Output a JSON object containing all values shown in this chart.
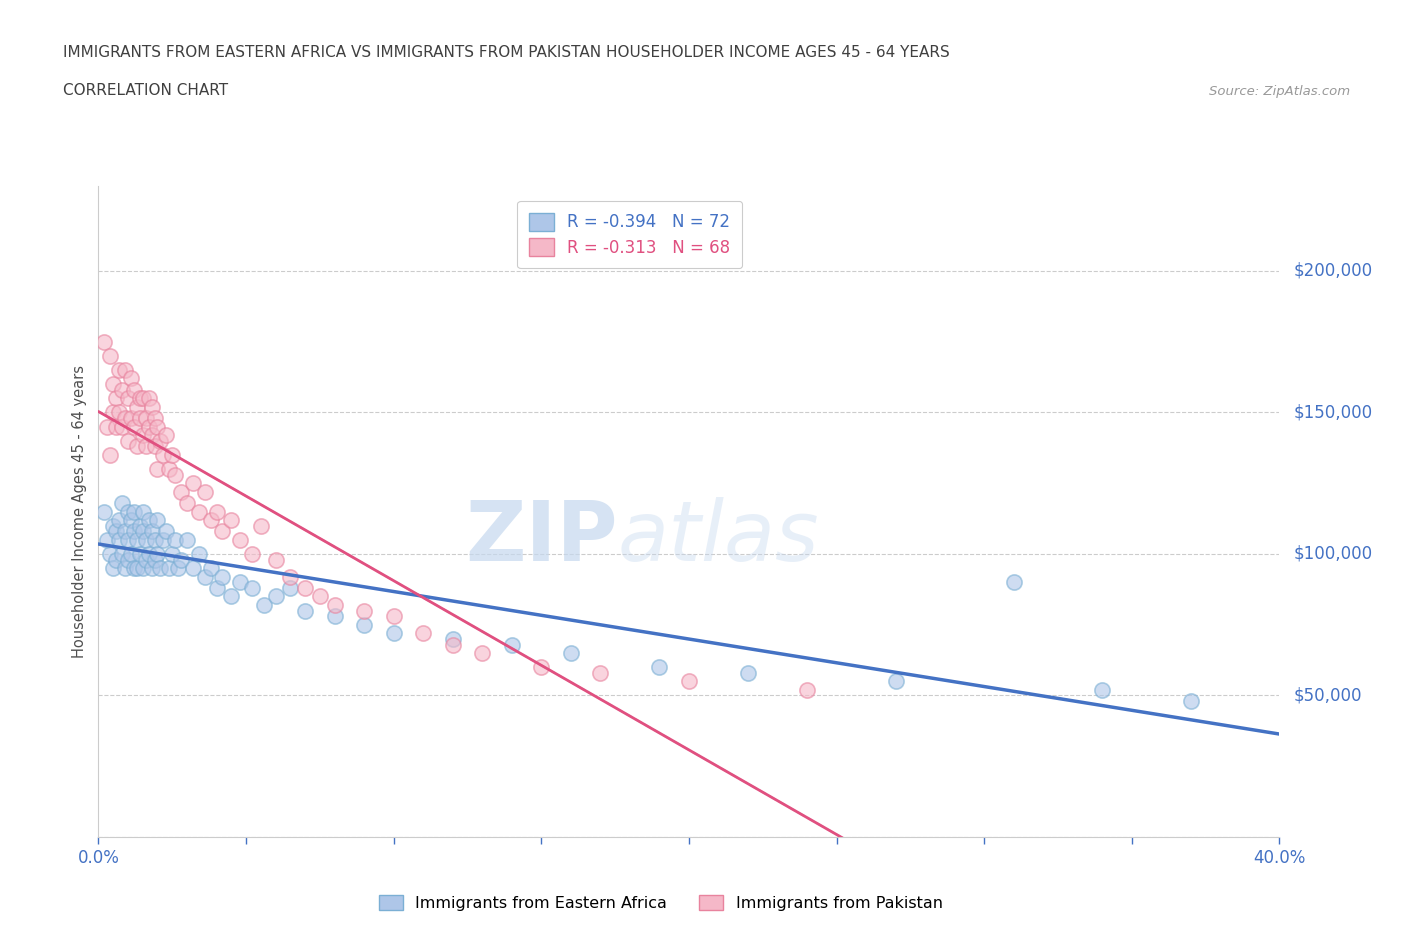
{
  "title_line1": "IMMIGRANTS FROM EASTERN AFRICA VS IMMIGRANTS FROM PAKISTAN HOUSEHOLDER INCOME AGES 45 - 64 YEARS",
  "title_line2": "CORRELATION CHART",
  "source": "Source: ZipAtlas.com",
  "ylabel": "Householder Income Ages 45 - 64 years",
  "xlim": [
    0.0,
    0.4
  ],
  "ylim": [
    0,
    230000
  ],
  "xticks": [
    0.0,
    0.05,
    0.1,
    0.15,
    0.2,
    0.25,
    0.3,
    0.35,
    0.4
  ],
  "yticks": [
    0,
    50000,
    100000,
    150000,
    200000
  ],
  "yticklabels": [
    "",
    "$50,000",
    "$100,000",
    "$150,000",
    "$200,000"
  ],
  "series_blue": {
    "label": "Immigrants from Eastern Africa",
    "color": "#aec6e8",
    "edge_color": "#7bafd4",
    "line_color": "#4472c4",
    "R": -0.394,
    "N": 72,
    "x": [
      0.002,
      0.003,
      0.004,
      0.005,
      0.005,
      0.006,
      0.006,
      0.007,
      0.007,
      0.008,
      0.008,
      0.009,
      0.009,
      0.01,
      0.01,
      0.01,
      0.011,
      0.011,
      0.012,
      0.012,
      0.012,
      0.013,
      0.013,
      0.014,
      0.014,
      0.015,
      0.015,
      0.015,
      0.016,
      0.016,
      0.017,
      0.017,
      0.018,
      0.018,
      0.019,
      0.019,
      0.02,
      0.02,
      0.021,
      0.022,
      0.023,
      0.024,
      0.025,
      0.026,
      0.027,
      0.028,
      0.03,
      0.032,
      0.034,
      0.036,
      0.038,
      0.04,
      0.042,
      0.045,
      0.048,
      0.052,
      0.056,
      0.06,
      0.065,
      0.07,
      0.08,
      0.09,
      0.1,
      0.12,
      0.14,
      0.16,
      0.19,
      0.22,
      0.27,
      0.31,
      0.34,
      0.37
    ],
    "y": [
      115000,
      105000,
      100000,
      110000,
      95000,
      108000,
      98000,
      112000,
      105000,
      118000,
      100000,
      95000,
      108000,
      115000,
      105000,
      98000,
      112000,
      100000,
      108000,
      95000,
      115000,
      105000,
      95000,
      110000,
      100000,
      108000,
      115000,
      95000,
      105000,
      98000,
      112000,
      100000,
      108000,
      95000,
      105000,
      98000,
      112000,
      100000,
      95000,
      105000,
      108000,
      95000,
      100000,
      105000,
      95000,
      98000,
      105000,
      95000,
      100000,
      92000,
      95000,
      88000,
      92000,
      85000,
      90000,
      88000,
      82000,
      85000,
      88000,
      80000,
      78000,
      75000,
      72000,
      70000,
      68000,
      65000,
      60000,
      58000,
      55000,
      90000,
      52000,
      48000
    ]
  },
  "series_pink": {
    "label": "Immigrants from Pakistan",
    "color": "#f5b8c8",
    "edge_color": "#e8839e",
    "line_color": "#e05080",
    "line_style": "-",
    "R": -0.313,
    "N": 68,
    "x": [
      0.002,
      0.003,
      0.004,
      0.004,
      0.005,
      0.005,
      0.006,
      0.006,
      0.007,
      0.007,
      0.008,
      0.008,
      0.009,
      0.009,
      0.01,
      0.01,
      0.011,
      0.011,
      0.012,
      0.012,
      0.013,
      0.013,
      0.014,
      0.014,
      0.015,
      0.015,
      0.016,
      0.016,
      0.017,
      0.017,
      0.018,
      0.018,
      0.019,
      0.019,
      0.02,
      0.02,
      0.021,
      0.022,
      0.023,
      0.024,
      0.025,
      0.026,
      0.028,
      0.03,
      0.032,
      0.034,
      0.036,
      0.038,
      0.04,
      0.042,
      0.045,
      0.048,
      0.052,
      0.055,
      0.06,
      0.065,
      0.07,
      0.075,
      0.08,
      0.09,
      0.1,
      0.11,
      0.12,
      0.13,
      0.15,
      0.17,
      0.2,
      0.24
    ],
    "y": [
      175000,
      145000,
      135000,
      170000,
      150000,
      160000,
      155000,
      145000,
      165000,
      150000,
      145000,
      158000,
      165000,
      148000,
      155000,
      140000,
      148000,
      162000,
      158000,
      145000,
      152000,
      138000,
      148000,
      155000,
      142000,
      155000,
      148000,
      138000,
      145000,
      155000,
      142000,
      152000,
      148000,
      138000,
      145000,
      130000,
      140000,
      135000,
      142000,
      130000,
      135000,
      128000,
      122000,
      118000,
      125000,
      115000,
      122000,
      112000,
      115000,
      108000,
      112000,
      105000,
      100000,
      110000,
      98000,
      92000,
      88000,
      85000,
      82000,
      80000,
      78000,
      72000,
      68000,
      65000,
      60000,
      58000,
      55000,
      52000
    ]
  },
  "watermark_zip": "ZIP",
  "watermark_atlas": "atlas",
  "bg_color": "#ffffff",
  "grid_color": "#cccccc",
  "axis_color": "#cccccc",
  "tick_color": "#4472c4",
  "title_color": "#404040",
  "ylabel_color": "#505050"
}
